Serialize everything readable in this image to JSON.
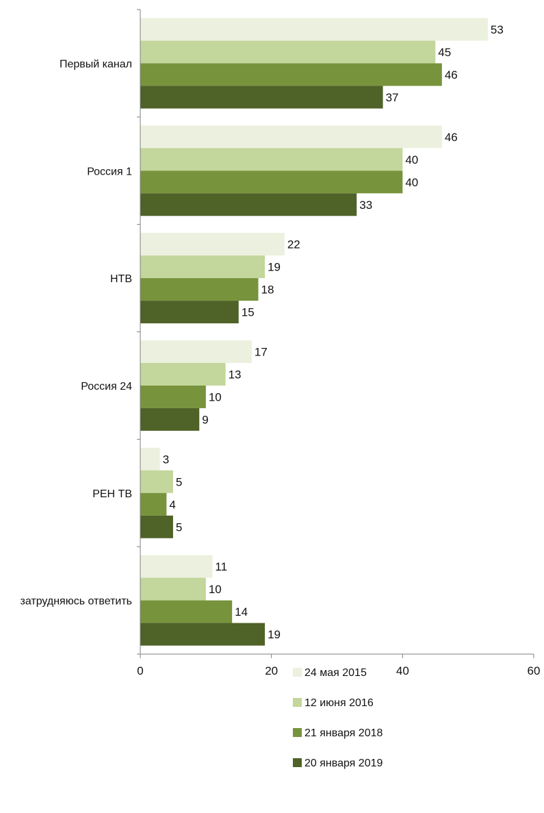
{
  "chart_data": {
    "type": "bar",
    "orientation": "horizontal",
    "categories": [
      "Первый канал",
      "Россия 1",
      "НТВ",
      "Россия 24",
      "РЕН ТВ",
      "затрудняюсь ответить"
    ],
    "series": [
      {
        "name": "24 мая 2015",
        "color": "#EBF1DE",
        "values": [
          53,
          46,
          22,
          17,
          3,
          11
        ]
      },
      {
        "name": "12 июня 2016",
        "color": "#C3D69B",
        "values": [
          45,
          40,
          19,
          13,
          5,
          10
        ]
      },
      {
        "name": "21 января 2018",
        "color": "#77933C",
        "values": [
          46,
          40,
          18,
          10,
          4,
          14
        ]
      },
      {
        "name": "20 января 2019",
        "color": "#4F6228",
        "values": [
          37,
          33,
          15,
          9,
          5,
          19
        ]
      }
    ],
    "xlim": [
      0,
      60
    ],
    "x_ticks": [
      0,
      20,
      40,
      60
    ],
    "title": "",
    "xlabel": "",
    "ylabel": "",
    "grid": false,
    "legend_position": "bottom"
  }
}
